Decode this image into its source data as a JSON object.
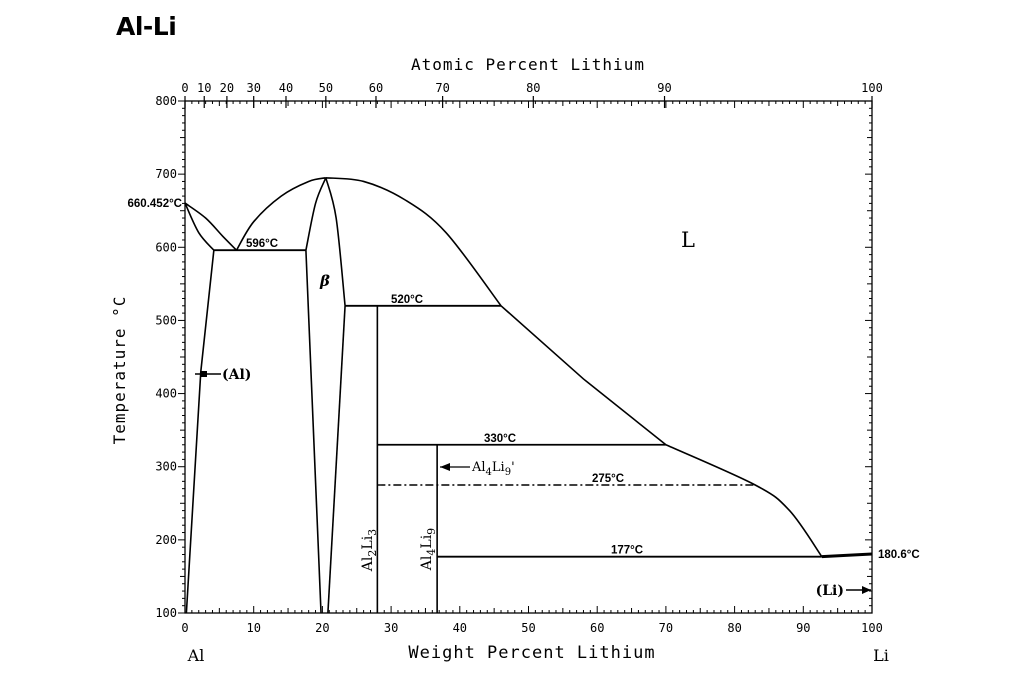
{
  "title": "Al-Li",
  "chart_data": {
    "type": "phase-diagram",
    "title": "Al-Li",
    "xlabel": "Weight Percent Lithium",
    "x2label": "Atomic Percent Lithium",
    "ylabel": "Temperature °C",
    "xlim": [
      0,
      100
    ],
    "ylim": [
      100,
      800
    ],
    "x_ticks": [
      "0",
      "10",
      "20",
      "30",
      "40",
      "50",
      "60",
      "70",
      "80",
      "90",
      "100"
    ],
    "x2_ticks": [
      {
        "label": "0",
        "wt": 0
      },
      {
        "label": "10",
        "wt": 2.8
      },
      {
        "label": "20",
        "wt": 6.1
      },
      {
        "label": "30",
        "wt": 10.0
      },
      {
        "label": "40",
        "wt": 14.7
      },
      {
        "label": "50",
        "wt": 20.5
      },
      {
        "label": "60",
        "wt": 27.8
      },
      {
        "label": "70",
        "wt": 37.5
      },
      {
        "label": "80",
        "wt": 50.7
      },
      {
        "label": "90",
        "wt": 69.8
      },
      {
        "label": "100",
        "wt": 100
      }
    ],
    "y_ticks": [
      "100",
      "200",
      "300",
      "400",
      "500",
      "600",
      "700",
      "800"
    ],
    "end_labels": {
      "left": "Al",
      "right": "Li"
    },
    "phase_labels": [
      {
        "label": "L",
        "x": 73,
        "y": 625
      },
      {
        "label": "β",
        "x": 20.2,
        "y": 545
      },
      {
        "label": "(Al)",
        "x": 3.5,
        "y": 430
      },
      {
        "label": "(Li)",
        "x": 96,
        "y": 135
      },
      {
        "label": "Al2Li3",
        "x": 27,
        "y": 220
      },
      {
        "label": "Al4Li9",
        "x": 35.7,
        "y": 220
      },
      {
        "label": "Al4Li9'",
        "x": 37,
        "y": 305
      }
    ],
    "invariants": [
      {
        "label": "660.452°C",
        "T": 660.452,
        "type": "melting point Al"
      },
      {
        "label": "596°C",
        "T": 596,
        "x_range": [
          4.2,
          17.6
        ],
        "eutectic_x": 7.5
      },
      {
        "label": "520°C",
        "T": 520,
        "x_range": [
          23.3,
          46
        ]
      },
      {
        "label": "330°C",
        "T": 330,
        "x_range": [
          28,
          70
        ]
      },
      {
        "label": "275°C",
        "T": 275,
        "x_range": [
          28,
          83
        ],
        "style": "dash-dot"
      },
      {
        "label": "177°C",
        "T": 177,
        "x_range": [
          36.7,
          92.7
        ]
      },
      {
        "label": "180.6°C",
        "T": 180.6,
        "type": "melting point Li"
      }
    ],
    "series": [
      {
        "name": "Liquidus (Al side)",
        "x": [
          0,
          3,
          5.5,
          7.5
        ],
        "y": [
          660.452,
          640,
          615,
          596
        ]
      },
      {
        "name": "Liquidus (β)",
        "x": [
          7.5,
          10,
          14,
          18,
          20.5
        ],
        "y": [
          596,
          635,
          670,
          690,
          695
        ]
      },
      {
        "name": "Liquidus (Li side)",
        "x": [
          20.5,
          26,
          32,
          38,
          46,
          58,
          70,
          83,
          88,
          92.7
        ],
        "y": [
          695,
          690,
          665,
          620,
          520,
          420,
          330,
          275,
          240,
          177
        ]
      },
      {
        "name": "Solidus (Al)",
        "x": [
          0,
          2,
          4.2
        ],
        "y": [
          660.452,
          620,
          596
        ]
      },
      {
        "name": "Solvus (Al)",
        "x": [
          4.2,
          2.3,
          0.2
        ],
        "y": [
          596,
          430,
          100
        ]
      },
      {
        "name": "β boundary left",
        "x": [
          17.6,
          19,
          20.5
        ],
        "y": [
          596,
          660,
          695
        ]
      },
      {
        "name": "β boundary left low",
        "x": [
          17.6,
          19.8
        ],
        "y": [
          596,
          100
        ]
      },
      {
        "name": "β boundary right",
        "x": [
          20.5,
          22,
          23.3
        ],
        "y": [
          695,
          640,
          520
        ]
      },
      {
        "name": "β boundary right low",
        "x": [
          23.3,
          20.8
        ],
        "y": [
          520,
          100
        ]
      },
      {
        "name": "Al2Li3",
        "x": [
          28,
          28
        ],
        "y": [
          520,
          100
        ]
      },
      {
        "name": "Al4Li9",
        "x": [
          36.7,
          36.7
        ],
        "y": [
          330,
          100
        ]
      },
      {
        "name": "(Li) solidus",
        "x": [
          92.7,
          100
        ],
        "y": [
          177,
          180.6
        ]
      }
    ],
    "grid": false
  }
}
